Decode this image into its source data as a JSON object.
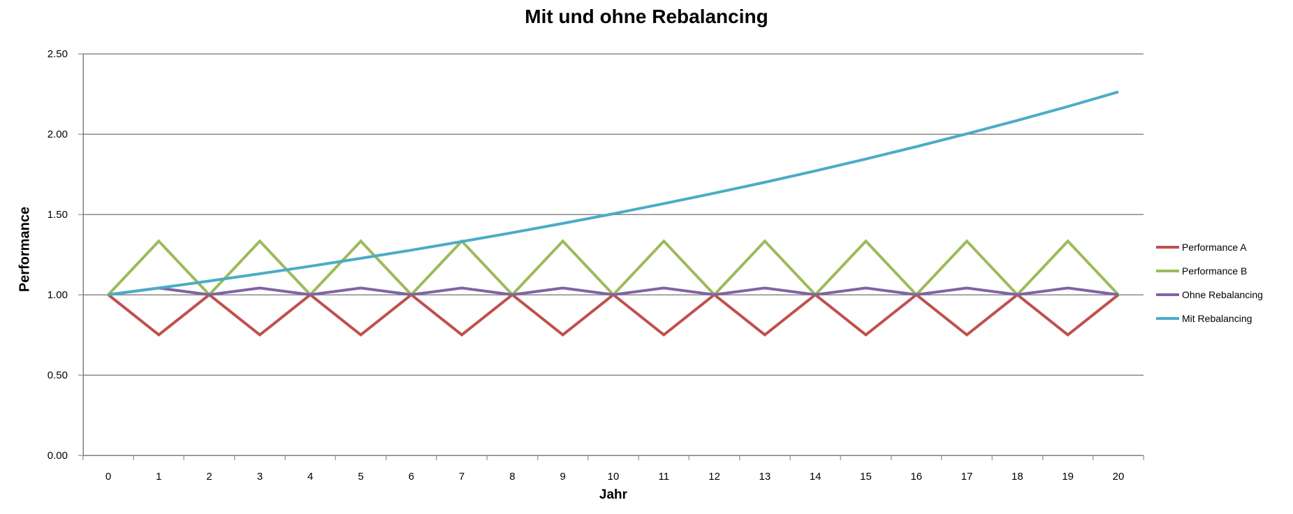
{
  "chart": {
    "title": "Mit und ohne Rebalancing",
    "x_axis_title": "Jahr",
    "y_axis_title": "Performance"
  },
  "chart_data": {
    "type": "line",
    "title": "Mit und ohne Rebalancing",
    "xlabel": "Jahr",
    "ylabel": "Performance",
    "x": [
      0,
      1,
      2,
      3,
      4,
      5,
      6,
      7,
      8,
      9,
      10,
      11,
      12,
      13,
      14,
      15,
      16,
      17,
      18,
      19,
      20
    ],
    "x_tick_labels": [
      "0",
      "1",
      "2",
      "3",
      "4",
      "5",
      "6",
      "7",
      "8",
      "9",
      "10",
      "11",
      "12",
      "13",
      "14",
      "15",
      "16",
      "17",
      "18",
      "19",
      "20"
    ],
    "y_tick_labels": [
      "0.00",
      "0.50",
      "1.00",
      "1.50",
      "2.00",
      "2.50"
    ],
    "ylim": [
      0,
      2.5
    ],
    "y_tick_step": 0.5,
    "grid": true,
    "legend_position": "right",
    "series": [
      {
        "name": "Performance A",
        "color": "#C0504D",
        "values": [
          1.0,
          0.75,
          1.0,
          0.75,
          1.0,
          0.75,
          1.0,
          0.75,
          1.0,
          0.75,
          1.0,
          0.75,
          1.0,
          0.75,
          1.0,
          0.75,
          1.0,
          0.75,
          1.0,
          0.75,
          1.0
        ]
      },
      {
        "name": "Performance B",
        "color": "#9BBB59",
        "values": [
          1.0,
          1.3333,
          1.0,
          1.3333,
          1.0,
          1.3333,
          1.0,
          1.3333,
          1.0,
          1.3333,
          1.0,
          1.3333,
          1.0,
          1.3333,
          1.0,
          1.3333,
          1.0,
          1.3333,
          1.0,
          1.3333,
          1.0
        ]
      },
      {
        "name": "Ohne Rebalancing",
        "color": "#8064A2",
        "values": [
          1.0,
          1.0417,
          1.0,
          1.0417,
          1.0,
          1.0417,
          1.0,
          1.0417,
          1.0,
          1.0417,
          1.0,
          1.0417,
          1.0,
          1.0417,
          1.0,
          1.0417,
          1.0,
          1.0417,
          1.0,
          1.0417,
          1.0
        ]
      },
      {
        "name": "Mit Rebalancing",
        "color": "#4BACC6",
        "values": [
          1.0,
          1.0417,
          1.0851,
          1.1303,
          1.1774,
          1.2264,
          1.2775,
          1.3308,
          1.3862,
          1.444,
          1.5041,
          1.5668,
          1.6321,
          1.7001,
          1.7709,
          1.8447,
          1.9216,
          2.0017,
          2.0851,
          2.1719,
          2.2624
        ]
      }
    ],
    "colors": {
      "background": "#FFFFFF",
      "gridline": "#898989",
      "axis": "#7F7F7F",
      "tick_mark": "#A6A6A6",
      "text": "#000000"
    }
  }
}
